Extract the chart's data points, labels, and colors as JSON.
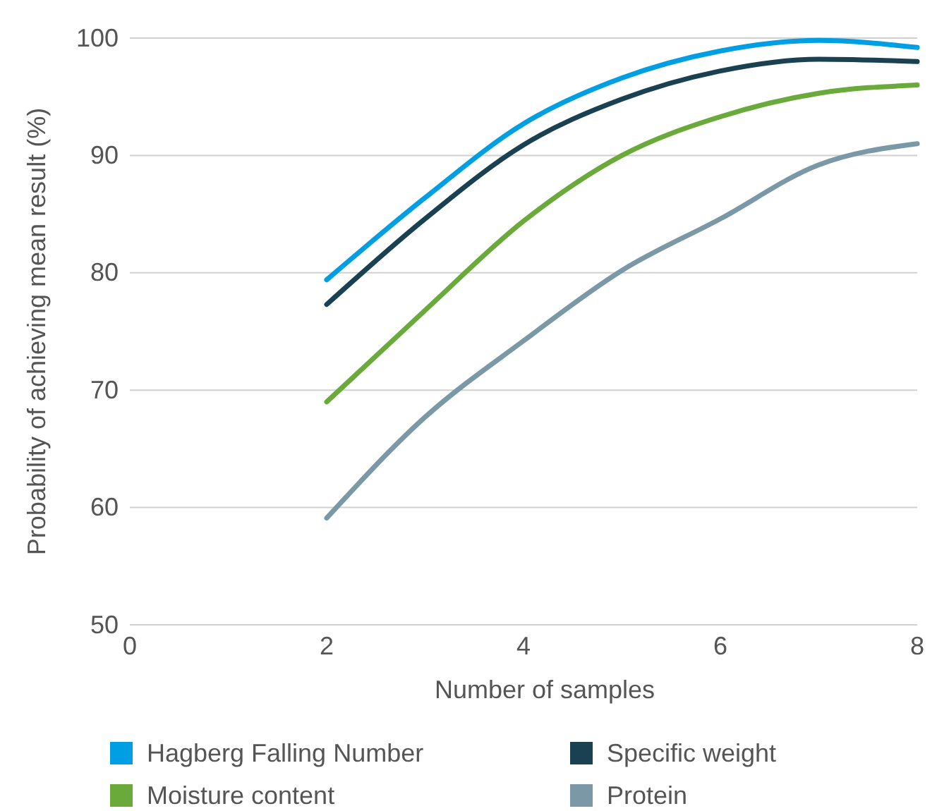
{
  "chart_data": {
    "type": "line",
    "xlabel": "Number of samples",
    "ylabel": "Probability of achieving mean result (%)",
    "x": [
      2,
      3,
      4,
      5,
      6,
      7,
      8
    ],
    "xlim": [
      0,
      8
    ],
    "xticks": [
      0,
      2,
      4,
      6,
      8
    ],
    "ylim": [
      50,
      100
    ],
    "yticks": [
      50,
      60,
      70,
      80,
      90,
      100
    ],
    "grid": "y",
    "legend": "bottom",
    "marker": "none",
    "line_style": "solid",
    "series": [
      {
        "name": "Hagberg Falling Number",
        "color": "#009fe3",
        "values": [
          79.4,
          86.4,
          92.7,
          96.6,
          98.9,
          99.8,
          99.2
        ]
      },
      {
        "name": "Specific weight",
        "color": "#1a4152",
        "values": [
          77.3,
          84.6,
          90.9,
          94.8,
          97.2,
          98.2,
          98.0
        ]
      },
      {
        "name": "Moisture content",
        "color": "#6aaa3a",
        "values": [
          69.0,
          76.8,
          84.4,
          90.0,
          93.3,
          95.3,
          96.0
        ]
      },
      {
        "name": "Protein",
        "color": "#7a98a6",
        "values": [
          59.1,
          67.7,
          74.2,
          80.2,
          84.6,
          89.2,
          91.0
        ]
      }
    ]
  }
}
